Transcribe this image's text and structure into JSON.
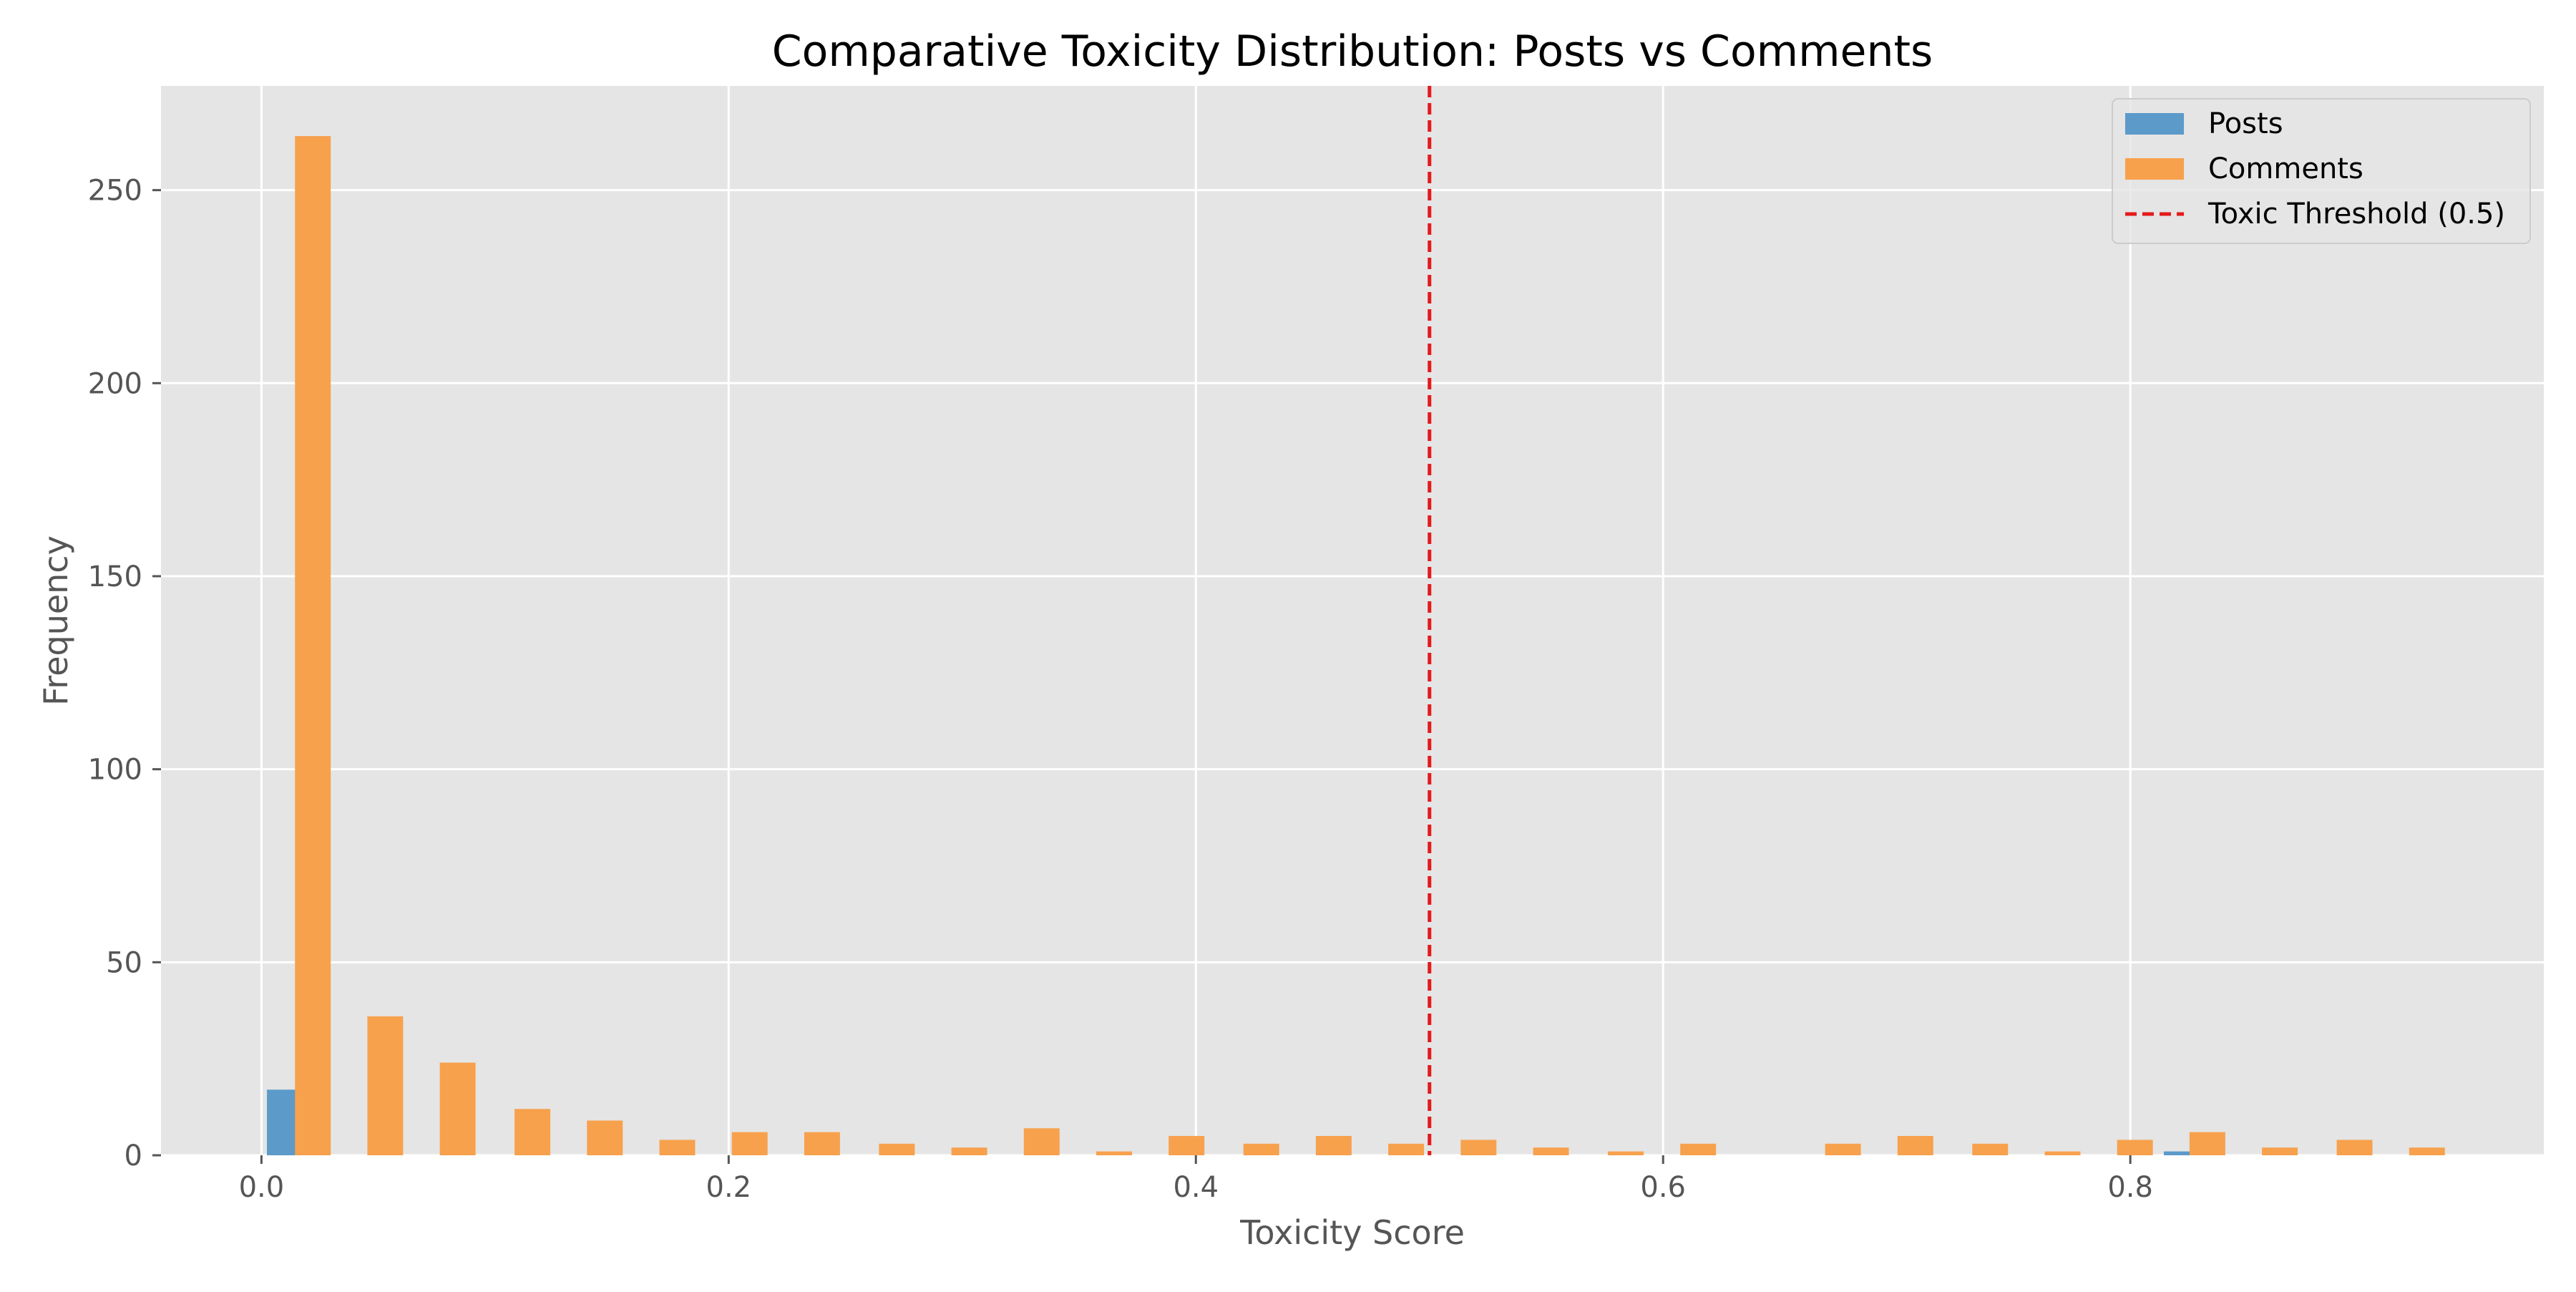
{
  "chart_data": {
    "type": "bar",
    "title": "Comparative Toxicity Distribution: Posts vs Comments",
    "xlabel": "Toxicity Score",
    "ylabel": "Frequency",
    "xlim": [
      -0.043,
      0.977
    ],
    "ylim": [
      0,
      277
    ],
    "xticks": [
      0.0,
      0.2,
      0.4,
      0.6,
      0.8
    ],
    "xtick_labels": [
      "0.0",
      "0.2",
      "0.4",
      "0.6",
      "0.8"
    ],
    "yticks": [
      0,
      50,
      100,
      150,
      200,
      250
    ],
    "ytick_labels": [
      "0",
      "50",
      "100",
      "150",
      "200",
      "250"
    ],
    "grid": true,
    "legend_position": "top-right",
    "series": [
      {
        "name": "Posts",
        "color": "#5b9ac9",
        "x": [
          0.01,
          0.822
        ],
        "values": [
          17,
          1
        ]
      },
      {
        "name": "Comments",
        "color": "#f7a14d",
        "x": [
          0.022,
          0.053,
          0.084,
          0.116,
          0.147,
          0.178,
          0.209,
          0.24,
          0.272,
          0.303,
          0.334,
          0.365,
          0.396,
          0.428,
          0.459,
          0.49,
          0.521,
          0.552,
          0.584,
          0.615,
          0.646,
          0.677,
          0.708,
          0.74,
          0.771,
          0.802,
          0.833,
          0.864,
          0.896,
          0.927
        ],
        "values": [
          264,
          36,
          24,
          12,
          9,
          4,
          6,
          6,
          3,
          2,
          7,
          1,
          5,
          3,
          5,
          3,
          4,
          2,
          1,
          3,
          0,
          3,
          5,
          3,
          1,
          4,
          6,
          2,
          4,
          2
        ]
      }
    ],
    "reference_line": {
      "name": "Toxic Threshold (0.5)",
      "x": 0.5,
      "color": "#e41a1c",
      "style": "dashed"
    }
  }
}
